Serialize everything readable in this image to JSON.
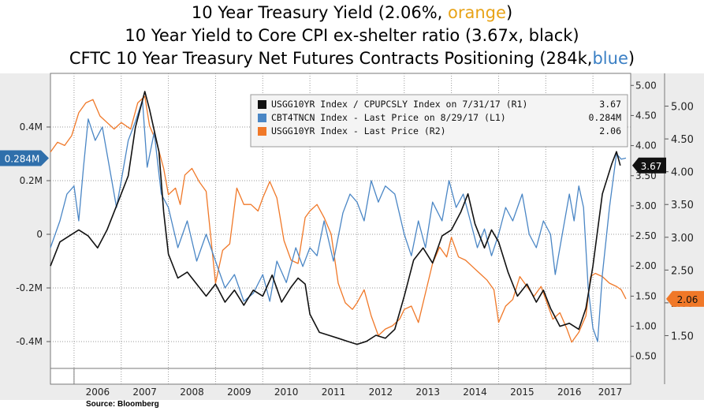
{
  "title": {
    "line1_prefix": "10 Year Treasury Yield (2.06%, ",
    "line1_color_word": "orange",
    "line1_suffix": ")",
    "line2": "10 Year Yield to Core CPI ex-shelter ratio (3.67x, black)",
    "line3_prefix": "CFTC 10 Year Treasury Net Futures Contracts Positioning (284k,",
    "line3_color_word": "blue",
    "line3_suffix": ")"
  },
  "source": "Source: Bloomberg",
  "colors": {
    "ratio": "#111111",
    "futures": "#4a86c5",
    "yield": "#f07828",
    "grid": "#9a9a9a",
    "plot_bg": "#ffffff"
  },
  "chart_data": {
    "type": "line",
    "x_range": [
      2005.5,
      2017.8
    ],
    "x_ticks": [
      "2006",
      "2007",
      "2008",
      "2009",
      "2010",
      "2011",
      "2012",
      "2013",
      "2014",
      "2015",
      "2016",
      "2017"
    ],
    "left_axis": {
      "range": [
        -0.5,
        0.6
      ],
      "ticks": [
        {
          "value": 0.4,
          "label": "0.4M"
        },
        {
          "value": 0.2,
          "label": "0.2M"
        },
        {
          "value": 0,
          "label": "0"
        },
        {
          "value": -0.2,
          "label": "-0.2M"
        },
        {
          "value": -0.4,
          "label": "-0.4M"
        }
      ],
      "last_label": "0.284M",
      "last_value": 0.284
    },
    "right1_axis": {
      "range": [
        0.3,
        5.2
      ],
      "ticks": [
        "0.50",
        "1.00",
        "1.50",
        "2.00",
        "2.50",
        "3.00",
        "3.50",
        "4.00",
        "4.50",
        "5.00"
      ],
      "last_label": "3.67",
      "last_value": 3.67
    },
    "right2_axis": {
      "range": [
        1.0,
        5.5
      ],
      "ticks": [
        "1.50",
        "2.00",
        "2.50",
        "3.00",
        "3.50",
        "4.00",
        "4.50",
        "5.00"
      ],
      "last_label": "2.06",
      "last_value": 2.06
    },
    "legend": [
      {
        "key": "ratio",
        "label": "USGG10YR Index / CPUPCSLY Index on 7/31/17 (R1)",
        "value": "3.67"
      },
      {
        "key": "futures",
        "label": "CBT4TNCN Index - Last Price on 8/29/17 (L1)",
        "value": "0.284M"
      },
      {
        "key": "yield",
        "label": "USGG10YR Index - Last Price (R2)",
        "value": "2.06"
      }
    ],
    "legend_position": "top-right",
    "series": [
      {
        "key": "ratio",
        "name": "USGG10YR Index / CPUPCSLY Index on 7/31/17 (R1)",
        "axis": "right1",
        "points": [
          [
            2005.5,
            2.0
          ],
          [
            2005.7,
            2.4
          ],
          [
            2005.9,
            2.5
          ],
          [
            2006.1,
            2.6
          ],
          [
            2006.3,
            2.5
          ],
          [
            2006.5,
            2.3
          ],
          [
            2006.7,
            2.6
          ],
          [
            2006.85,
            2.9
          ],
          [
            2007.0,
            3.2
          ],
          [
            2007.15,
            3.5
          ],
          [
            2007.3,
            4.3
          ],
          [
            2007.5,
            4.9
          ],
          [
            2007.6,
            4.6
          ],
          [
            2007.8,
            3.9
          ],
          [
            2007.9,
            2.9
          ],
          [
            2008.0,
            2.2
          ],
          [
            2008.2,
            1.8
          ],
          [
            2008.4,
            1.9
          ],
          [
            2008.6,
            1.7
          ],
          [
            2008.8,
            1.5
          ],
          [
            2009.0,
            1.7
          ],
          [
            2009.2,
            1.4
          ],
          [
            2009.4,
            1.6
          ],
          [
            2009.6,
            1.35
          ],
          [
            2009.8,
            1.6
          ],
          [
            2010.0,
            1.5
          ],
          [
            2010.2,
            1.85
          ],
          [
            2010.4,
            1.4
          ],
          [
            2010.6,
            1.65
          ],
          [
            2010.75,
            1.8
          ],
          [
            2010.9,
            1.7
          ],
          [
            2011.0,
            1.2
          ],
          [
            2011.2,
            0.9
          ],
          [
            2011.4,
            0.85
          ],
          [
            2011.6,
            0.8
          ],
          [
            2011.8,
            0.75
          ],
          [
            2012.0,
            0.7
          ],
          [
            2012.2,
            0.75
          ],
          [
            2012.4,
            0.85
          ],
          [
            2012.6,
            0.8
          ],
          [
            2012.8,
            0.95
          ],
          [
            2013.0,
            1.5
          ],
          [
            2013.2,
            2.1
          ],
          [
            2013.4,
            2.3
          ],
          [
            2013.6,
            2.05
          ],
          [
            2013.8,
            2.5
          ],
          [
            2014.0,
            2.6
          ],
          [
            2014.2,
            2.9
          ],
          [
            2014.35,
            3.2
          ],
          [
            2014.5,
            2.7
          ],
          [
            2014.7,
            2.3
          ],
          [
            2014.85,
            2.6
          ],
          [
            2015.0,
            2.4
          ],
          [
            2015.2,
            1.9
          ],
          [
            2015.4,
            1.5
          ],
          [
            2015.6,
            1.7
          ],
          [
            2015.8,
            1.4
          ],
          [
            2015.95,
            1.6
          ],
          [
            2016.1,
            1.3
          ],
          [
            2016.3,
            1.0
          ],
          [
            2016.5,
            1.05
          ],
          [
            2016.7,
            0.95
          ],
          [
            2016.85,
            1.3
          ],
          [
            2017.0,
            2.0
          ],
          [
            2017.2,
            3.2
          ],
          [
            2017.4,
            3.7
          ],
          [
            2017.5,
            3.9
          ],
          [
            2017.58,
            3.67
          ]
        ]
      },
      {
        "key": "futures",
        "name": "CBT4TNCN Index - Last Price on 8/29/17 (L1)",
        "axis": "left",
        "points": [
          [
            2005.5,
            -0.05
          ],
          [
            2005.6,
            0.0
          ],
          [
            2005.7,
            0.05
          ],
          [
            2005.85,
            0.15
          ],
          [
            2006.0,
            0.18
          ],
          [
            2006.1,
            0.05
          ],
          [
            2006.2,
            0.25
          ],
          [
            2006.3,
            0.43
          ],
          [
            2006.45,
            0.35
          ],
          [
            2006.6,
            0.4
          ],
          [
            2006.75,
            0.25
          ],
          [
            2006.9,
            0.1
          ],
          [
            2007.0,
            0.2
          ],
          [
            2007.15,
            0.35
          ],
          [
            2007.3,
            0.42
          ],
          [
            2007.45,
            0.5
          ],
          [
            2007.55,
            0.25
          ],
          [
            2007.7,
            0.38
          ],
          [
            2007.85,
            0.15
          ],
          [
            2008.0,
            0.1
          ],
          [
            2008.2,
            -0.05
          ],
          [
            2008.4,
            0.05
          ],
          [
            2008.6,
            -0.1
          ],
          [
            2008.8,
            0.0
          ],
          [
            2009.0,
            -0.1
          ],
          [
            2009.2,
            -0.2
          ],
          [
            2009.4,
            -0.15
          ],
          [
            2009.6,
            -0.25
          ],
          [
            2009.8,
            -0.22
          ],
          [
            2010.0,
            -0.15
          ],
          [
            2010.15,
            -0.25
          ],
          [
            2010.3,
            -0.1
          ],
          [
            2010.5,
            -0.18
          ],
          [
            2010.7,
            -0.05
          ],
          [
            2010.85,
            -0.12
          ],
          [
            2011.0,
            -0.05
          ],
          [
            2011.15,
            -0.08
          ],
          [
            2011.3,
            0.05
          ],
          [
            2011.5,
            -0.1
          ],
          [
            2011.7,
            0.08
          ],
          [
            2011.85,
            0.15
          ],
          [
            2012.0,
            0.12
          ],
          [
            2012.15,
            0.05
          ],
          [
            2012.3,
            0.2
          ],
          [
            2012.45,
            0.12
          ],
          [
            2012.6,
            0.18
          ],
          [
            2012.8,
            0.15
          ],
          [
            2013.0,
            0.0
          ],
          [
            2013.15,
            -0.08
          ],
          [
            2013.3,
            0.05
          ],
          [
            2013.45,
            -0.05
          ],
          [
            2013.6,
            0.12
          ],
          [
            2013.8,
            0.05
          ],
          [
            2013.95,
            0.2
          ],
          [
            2014.1,
            0.1
          ],
          [
            2014.25,
            0.15
          ],
          [
            2014.4,
            0.05
          ],
          [
            2014.55,
            -0.05
          ],
          [
            2014.7,
            0.02
          ],
          [
            2014.85,
            -0.08
          ],
          [
            2015.0,
            0.0
          ],
          [
            2015.15,
            0.1
          ],
          [
            2015.3,
            0.05
          ],
          [
            2015.5,
            0.15
          ],
          [
            2015.65,
            0.0
          ],
          [
            2015.8,
            -0.05
          ],
          [
            2015.95,
            0.05
          ],
          [
            2016.1,
            0.0
          ],
          [
            2016.2,
            -0.15
          ],
          [
            2016.35,
            0.0
          ],
          [
            2016.5,
            0.15
          ],
          [
            2016.6,
            0.05
          ],
          [
            2016.7,
            0.18
          ],
          [
            2016.8,
            0.1
          ],
          [
            2016.9,
            -0.2
          ],
          [
            2017.0,
            -0.35
          ],
          [
            2017.1,
            -0.4
          ],
          [
            2017.2,
            -0.15
          ],
          [
            2017.35,
            0.1
          ],
          [
            2017.5,
            0.3
          ],
          [
            2017.6,
            0.28
          ],
          [
            2017.7,
            0.284
          ]
        ]
      },
      {
        "key": "yield",
        "name": "USGG10YR Index - Last Price (R2)",
        "axis": "right2",
        "points": [
          [
            2005.5,
            4.3
          ],
          [
            2005.65,
            4.45
          ],
          [
            2005.8,
            4.4
          ],
          [
            2005.95,
            4.55
          ],
          [
            2006.1,
            4.9
          ],
          [
            2006.25,
            5.05
          ],
          [
            2006.4,
            5.1
          ],
          [
            2006.55,
            4.85
          ],
          [
            2006.7,
            4.75
          ],
          [
            2006.85,
            4.65
          ],
          [
            2007.0,
            4.75
          ],
          [
            2007.2,
            4.65
          ],
          [
            2007.35,
            5.05
          ],
          [
            2007.5,
            5.15
          ],
          [
            2007.6,
            4.7
          ],
          [
            2007.75,
            4.45
          ],
          [
            2007.9,
            4.05
          ],
          [
            2008.0,
            3.65
          ],
          [
            2008.15,
            3.75
          ],
          [
            2008.25,
            3.5
          ],
          [
            2008.35,
            3.95
          ],
          [
            2008.5,
            4.05
          ],
          [
            2008.65,
            3.85
          ],
          [
            2008.8,
            3.7
          ],
          [
            2008.9,
            3.0
          ],
          [
            2009.0,
            2.3
          ],
          [
            2009.15,
            2.8
          ],
          [
            2009.3,
            2.9
          ],
          [
            2009.45,
            3.75
          ],
          [
            2009.6,
            3.5
          ],
          [
            2009.75,
            3.5
          ],
          [
            2009.9,
            3.4
          ],
          [
            2010.0,
            3.6
          ],
          [
            2010.15,
            3.85
          ],
          [
            2010.3,
            3.6
          ],
          [
            2010.45,
            2.95
          ],
          [
            2010.6,
            2.65
          ],
          [
            2010.75,
            2.6
          ],
          [
            2010.9,
            3.3
          ],
          [
            2011.0,
            3.4
          ],
          [
            2011.15,
            3.5
          ],
          [
            2011.3,
            3.3
          ],
          [
            2011.45,
            3.05
          ],
          [
            2011.6,
            2.3
          ],
          [
            2011.75,
            2.0
          ],
          [
            2011.9,
            1.9
          ],
          [
            2012.0,
            2.0
          ],
          [
            2012.15,
            2.2
          ],
          [
            2012.3,
            1.8
          ],
          [
            2012.45,
            1.5
          ],
          [
            2012.6,
            1.6
          ],
          [
            2012.75,
            1.65
          ],
          [
            2012.9,
            1.75
          ],
          [
            2013.0,
            1.9
          ],
          [
            2013.15,
            1.95
          ],
          [
            2013.3,
            1.7
          ],
          [
            2013.45,
            2.15
          ],
          [
            2013.6,
            2.6
          ],
          [
            2013.75,
            2.85
          ],
          [
            2013.9,
            2.7
          ],
          [
            2014.0,
            3.0
          ],
          [
            2014.15,
            2.7
          ],
          [
            2014.3,
            2.65
          ],
          [
            2014.45,
            2.55
          ],
          [
            2014.6,
            2.45
          ],
          [
            2014.75,
            2.35
          ],
          [
            2014.9,
            2.2
          ],
          [
            2015.0,
            1.7
          ],
          [
            2015.15,
            1.95
          ],
          [
            2015.3,
            2.05
          ],
          [
            2015.45,
            2.4
          ],
          [
            2015.6,
            2.25
          ],
          [
            2015.75,
            2.1
          ],
          [
            2015.9,
            2.25
          ],
          [
            2016.0,
            2.05
          ],
          [
            2016.15,
            1.75
          ],
          [
            2016.3,
            1.85
          ],
          [
            2016.45,
            1.6
          ],
          [
            2016.55,
            1.4
          ],
          [
            2016.7,
            1.55
          ],
          [
            2016.85,
            1.8
          ],
          [
            2016.95,
            2.4
          ],
          [
            2017.05,
            2.45
          ],
          [
            2017.2,
            2.4
          ],
          [
            2017.35,
            2.3
          ],
          [
            2017.5,
            2.25
          ],
          [
            2017.6,
            2.2
          ],
          [
            2017.7,
            2.06
          ]
        ]
      }
    ]
  }
}
